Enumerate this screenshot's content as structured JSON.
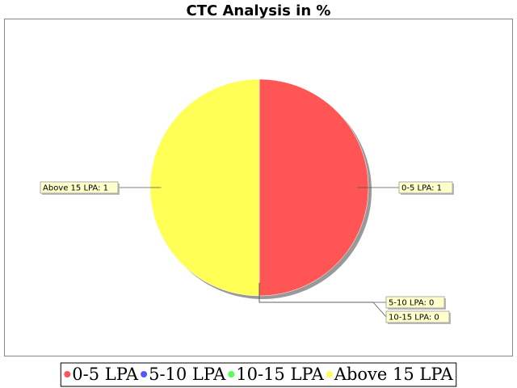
{
  "chart_data": {
    "type": "pie",
    "title": "CTC Analysis in %",
    "categories": [
      "0-5 LPA",
      "5-10 LPA",
      "10-15 LPA",
      "Above 15 LPA"
    ],
    "values": [
      1,
      0,
      0,
      1
    ],
    "colors": [
      "#ff5555",
      "#5555ff",
      "#55ff55",
      "#ffff55"
    ],
    "slice_labels": [
      "0-5 LPA: 1",
      "5-10 LPA: 0",
      "10-15 LPA: 0",
      "Above 15 LPA: 1"
    ],
    "legend": {
      "placement": "bottom",
      "entries": [
        "0-5 LPA",
        "5-10 LPA",
        "10-15 LPA",
        "Above 15 LPA"
      ]
    },
    "grid": false
  }
}
